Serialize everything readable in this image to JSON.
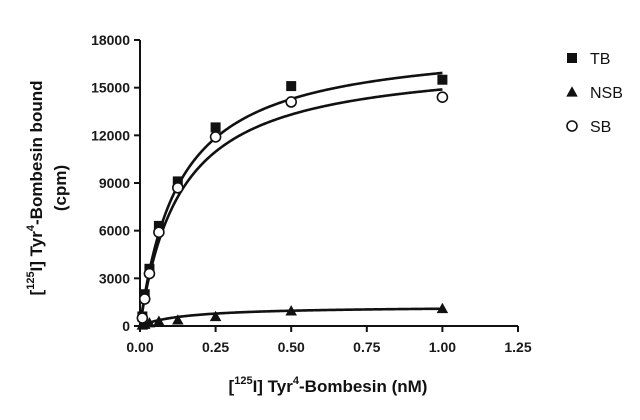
{
  "chart_data": {
    "type": "scatter",
    "title": "",
    "xlabel": {
      "prefix": "[",
      "sup1": "125",
      "mid": "I] Tyr",
      "sup2": "4",
      "suffix": "-Bombesin (nM)"
    },
    "ylabel": {
      "line1_prefix": "[",
      "line1_sup1": "125",
      "line1_mid": "I] Tyr",
      "line1_sup2": "4",
      "line1_suffix": "-Bombesin bound",
      "line2": "(cpm)"
    },
    "xlim": [
      0,
      1.25
    ],
    "ylim": [
      0,
      18000
    ],
    "x_ticks": [
      0,
      0.25,
      0.5,
      0.75,
      1.0,
      1.25
    ],
    "x_tick_labels": [
      "0.00",
      "0.25",
      "0.50",
      "0.75",
      "1.00",
      "1.25"
    ],
    "y_ticks": [
      0,
      3000,
      6000,
      9000,
      12000,
      15000,
      18000
    ],
    "y_tick_labels": [
      "0",
      "3000",
      "6000",
      "9000",
      "12000",
      "15000",
      "18000"
    ],
    "grid": false,
    "legend_position": "top-right",
    "series": [
      {
        "name": "TB",
        "marker": "square",
        "x": [
          0.0078,
          0.0156,
          0.0312,
          0.0625,
          0.125,
          0.25,
          0.5,
          1.0
        ],
        "y": [
          600,
          2000,
          3600,
          6300,
          9100,
          12500,
          15100,
          15500
        ],
        "fit": {
          "bmax": 18000,
          "kd": 0.13
        }
      },
      {
        "name": "NSB",
        "marker": "triangle",
        "x": [
          0.0078,
          0.0156,
          0.0312,
          0.0625,
          0.125,
          0.25,
          0.5,
          1.0
        ],
        "y": [
          60,
          110,
          200,
          300,
          380,
          600,
          950,
          1100
        ],
        "fit": {
          "bmax": 1250,
          "kd": 0.15
        }
      },
      {
        "name": "SB",
        "marker": "circle",
        "x": [
          0.0078,
          0.0156,
          0.0312,
          0.0625,
          0.125,
          0.25,
          0.5,
          1.0
        ],
        "y": [
          500,
          1700,
          3300,
          5900,
          8700,
          11900,
          14100,
          14400
        ],
        "fit": {
          "bmax": 16900,
          "kd": 0.135
        }
      }
    ]
  }
}
